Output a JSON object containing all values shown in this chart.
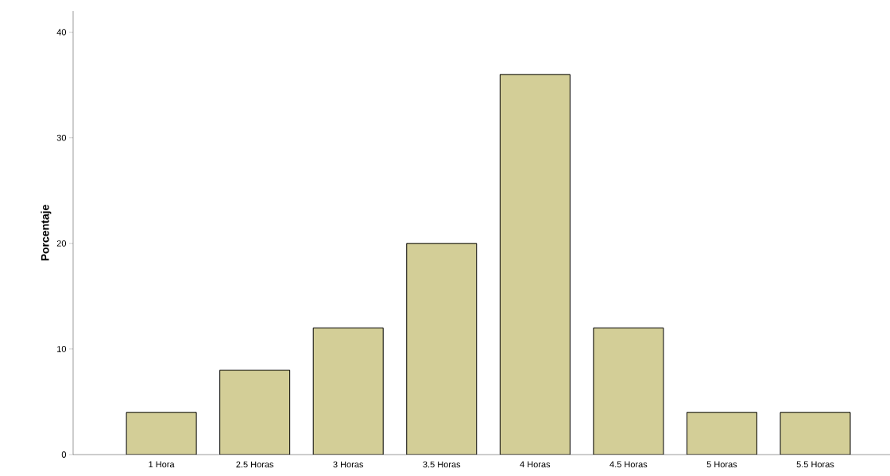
{
  "chart_data": {
    "type": "bar",
    "ylabel": "Porcentaje",
    "categories": [
      "1 Hora",
      "2.5 Horas",
      "3 Horas",
      "3.5 Horas",
      "4 Horas",
      "4.5 Horas",
      "5 Horas",
      "5.5 Horas"
    ],
    "values": [
      4,
      8,
      12,
      20,
      36,
      12,
      4,
      4
    ],
    "color": "#d3ce97",
    "ylim": [
      0,
      42
    ],
    "yticks": [
      0,
      10,
      20,
      30,
      40
    ],
    "grid": false
  }
}
